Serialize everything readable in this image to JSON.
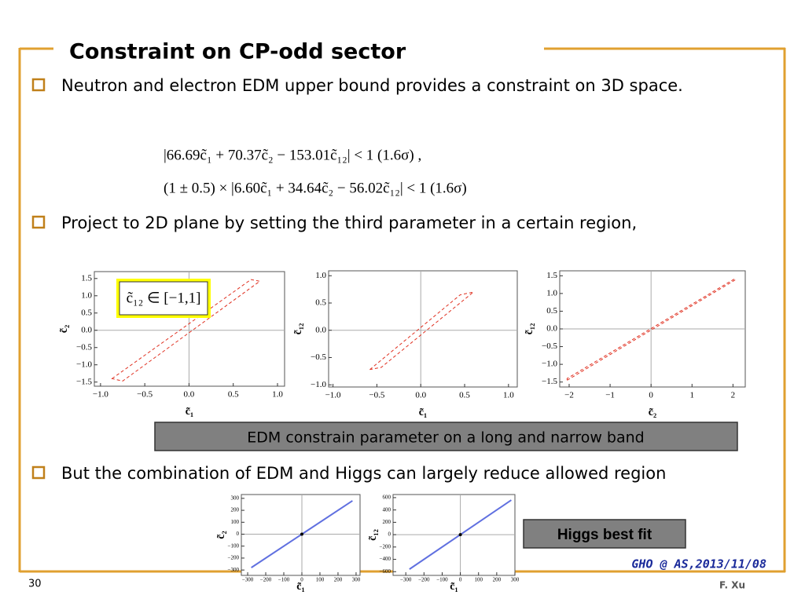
{
  "header": {
    "title": "Constraint on CP-odd sector"
  },
  "bullets": [
    "Neutron and electron EDM upper bound provides a constraint on 3D space.",
    "Project to 2D plane by setting the third parameter in a certain region,",
    "But the combination of EDM and Higgs can largely reduce allowed region"
  ],
  "equations": [
    "|66.69c̃₁ + 70.37c̃₂ − 153.01c̃₁₂| < 1        (1.6σ) ,",
    "(1 ± 0.5) × |6.60c̃₁ + 34.64c̃₂ − 56.02c̃₁₂| < 1        (1.6σ)"
  ],
  "plots": [
    {
      "xlabel": "c̃₁",
      "ylabel": "c̃₂",
      "inset": "c̃₁₂ ∈ [−1,1]",
      "xlim": [
        -1.07,
        1.08
      ],
      "ylim": [
        -1.62,
        1.7
      ],
      "xticks": [
        {
          "value": -1,
          "label": "−1.0"
        },
        {
          "value": -0.5,
          "label": "−0.5"
        },
        {
          "value": 0,
          "label": "0.0"
        },
        0.5,
        {
          "value": 1,
          "label": "1.0"
        }
      ],
      "yticks": [
        {
          "value": -1.5,
          "label": "−1.5"
        },
        {
          "value": -1,
          "label": "−1.0"
        },
        {
          "value": -0.5,
          "label": "−0.5"
        },
        {
          "value": 0,
          "label": "0.0"
        },
        0.5,
        {
          "value": 1,
          "label": "1.0"
        },
        1.5
      ],
      "band_x": [
        -0.87,
        0.7,
        0.8,
        -0.75
      ],
      "band_y": [
        -1.4,
        1.47,
        1.42,
        -1.47
      ]
    },
    {
      "xlabel": "c̃₁",
      "ylabel": "c̃₁₂",
      "xlim": [
        -1.05,
        1.1
      ],
      "ylim": [
        -1.04,
        1.09
      ],
      "xticks": [
        {
          "value": -1,
          "label": "−1.0"
        },
        {
          "value": -0.5,
          "label": "−0.5"
        },
        {
          "value": 0,
          "label": "0.0"
        },
        0.5,
        {
          "value": 1,
          "label": "1.0"
        }
      ],
      "yticks": [
        {
          "value": -1,
          "label": "−1.0"
        },
        {
          "value": -0.5,
          "label": "−0.5"
        },
        {
          "value": 0,
          "label": "0.0"
        },
        0.5,
        {
          "value": 1,
          "label": "1.0"
        }
      ],
      "band_x": [
        -0.58,
        0.45,
        0.6,
        -0.45
      ],
      "band_y": [
        -0.72,
        0.65,
        0.7,
        -0.68
      ]
    },
    {
      "xlabel": "c̃₂",
      "ylabel": "c̃₁₂",
      "xlim": [
        -2.23,
        2.3
      ],
      "ylim": [
        -1.64,
        1.64
      ],
      "xticks": [
        {
          "value": -2,
          "label": "−2"
        },
        {
          "value": -1,
          "label": "−1"
        },
        0,
        1,
        2
      ],
      "yticks": [
        {
          "value": -1.5,
          "label": "−1.5"
        },
        {
          "value": -1,
          "label": "−1.0"
        },
        {
          "value": -0.5,
          "label": "−0.5"
        },
        {
          "value": 0,
          "label": "0.0"
        },
        0.5,
        {
          "value": 1,
          "label": "1.0"
        },
        1.5
      ],
      "band_x": [
        -2.05,
        2.05,
        2.05,
        -2.05
      ],
      "band_y": [
        -1.45,
        1.38,
        1.42,
        -1.4
      ]
    }
  ],
  "higgs_plots": [
    {
      "xlabel": "c̃₁",
      "ylabel": "c̃₂",
      "xlim": [
        -335,
        322
      ],
      "ylim": [
        -345,
        332
      ],
      "xticks": [
        {
          "value": -300,
          "label": "−300"
        },
        {
          "value": -200,
          "label": "−200"
        },
        {
          "value": -100,
          "label": "−100"
        },
        0,
        100,
        200,
        300
      ],
      "yticks": [
        {
          "value": -300,
          "label": "−300"
        },
        {
          "value": -200,
          "label": "−200"
        },
        {
          "value": -100,
          "label": "−100"
        },
        0,
        100,
        200,
        300
      ],
      "line_x": [
        -280,
        280
      ],
      "line_y": [
        -280,
        280
      ],
      "best_fit": [
        0,
        0
      ]
    },
    {
      "xlabel": "c̃₁",
      "ylabel": "c̃₁₂",
      "xlim": [
        -370,
        300
      ],
      "ylim": [
        -660,
        650
      ],
      "xticks": [
        {
          "value": -300,
          "label": "−300"
        },
        {
          "value": -200,
          "label": "−200"
        },
        {
          "value": -100,
          "label": "−100"
        },
        0,
        100,
        200,
        300
      ],
      "yticks": [
        {
          "value": -600,
          "label": "−600"
        },
        {
          "value": -400,
          "label": "−400"
        },
        {
          "value": -200,
          "label": "−200"
        },
        0,
        200,
        400,
        600
      ],
      "line_x": [
        -280,
        280
      ],
      "line_y": [
        -560,
        560
      ],
      "best_fit": [
        0,
        0
      ]
    }
  ],
  "callout": "EDM constrain parameter on a long and narrow band",
  "higgs_label": "Higgs best fit",
  "footer": {
    "page": "30",
    "event": "GHO @ AS,2013/11/08",
    "author": "F. Xu"
  }
}
